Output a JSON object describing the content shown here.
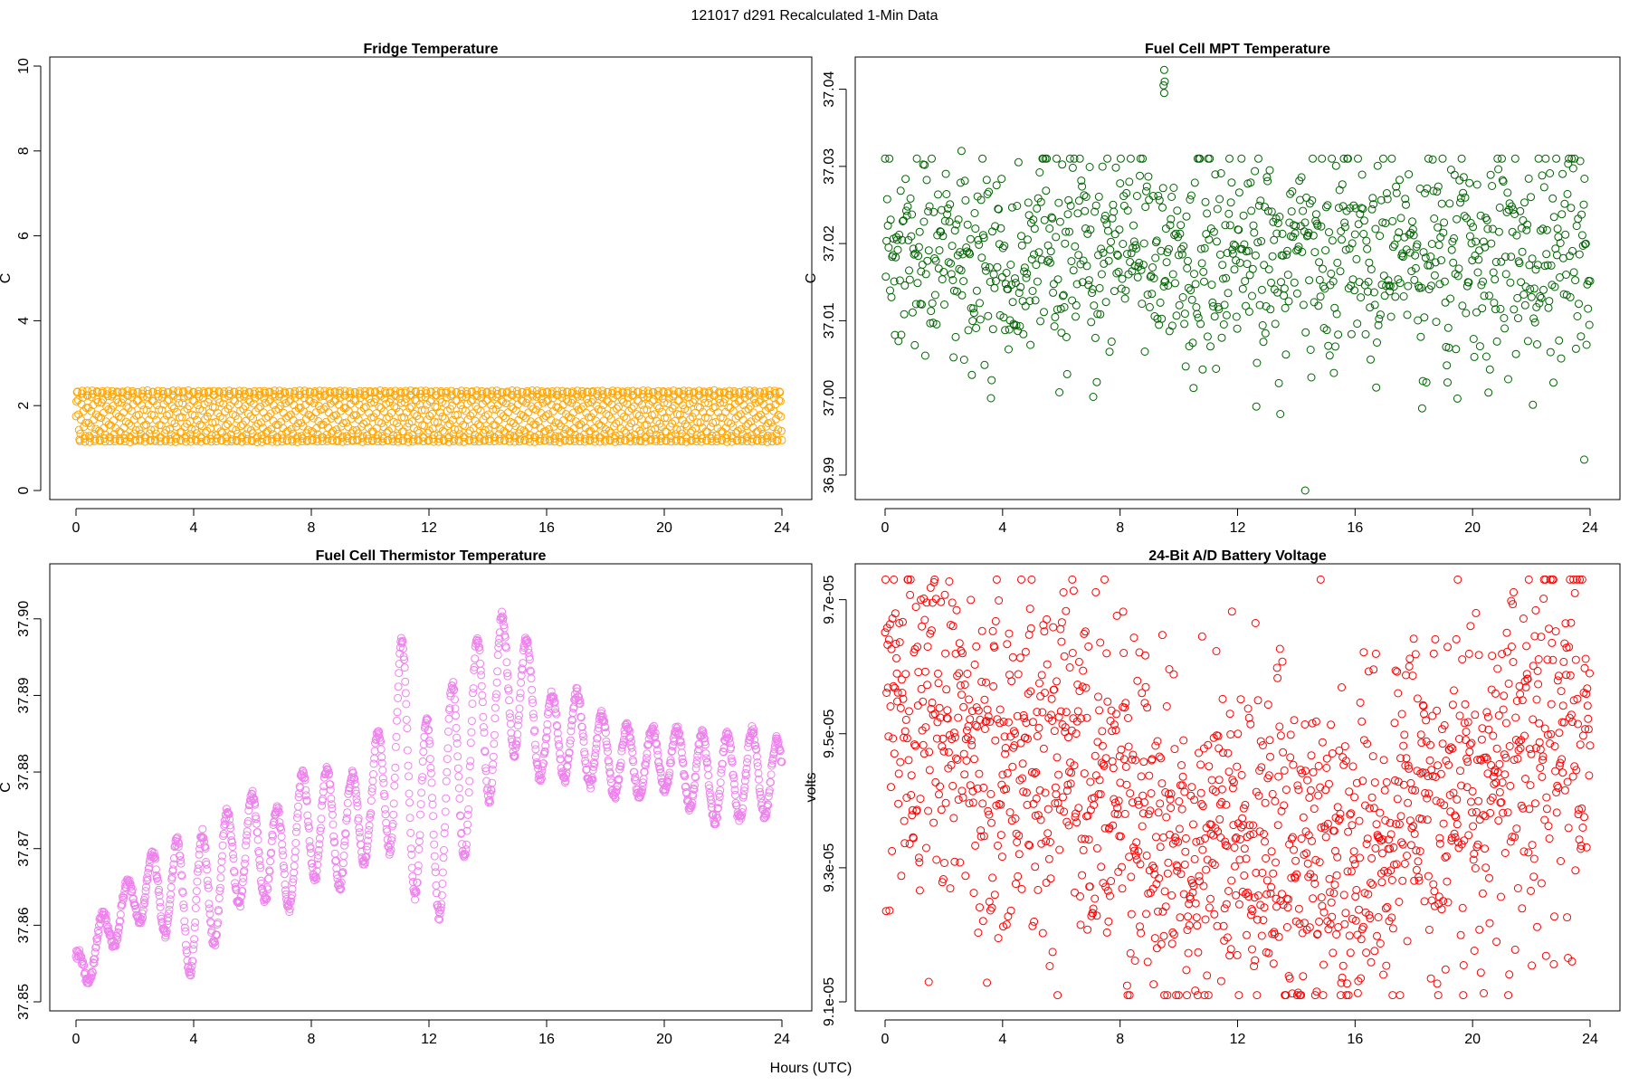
{
  "page": {
    "title": "121017   d291   Recalculated 1-Min Data",
    "xlabel": "Hours (UTC)"
  },
  "chart_data": [
    {
      "id": "fridge",
      "type": "scatter",
      "title": "Fridge Temperature",
      "xlabel": "Hours (UTC)",
      "ylabel": "C",
      "color": "#FFA500",
      "xlim": [
        0,
        24
      ],
      "ylim": [
        0,
        10
      ],
      "xticks": [
        0,
        4,
        8,
        12,
        16,
        20,
        24
      ],
      "yticks": [
        0,
        2,
        4,
        6,
        8,
        10
      ],
      "ytick_labels": [
        "0",
        "2",
        "4",
        "6",
        "8",
        "10"
      ],
      "series": {
        "name": "Fridge Temperature",
        "model": "oscillating band",
        "x_range": [
          0,
          24
        ],
        "y_min": 1.15,
        "y_max": 2.35,
        "n_points": 1440
      }
    },
    {
      "id": "mpt",
      "type": "scatter",
      "title": "Fuel Cell MPT Temperature",
      "xlabel": "Hours (UTC)",
      "ylabel": "C",
      "color": "#006400",
      "xlim": [
        0,
        24
      ],
      "ylim": [
        36.988,
        37.043
      ],
      "xticks": [
        0,
        4,
        8,
        12,
        16,
        20,
        24
      ],
      "yticks": [
        36.99,
        37.0,
        37.01,
        37.02,
        37.03,
        37.04
      ],
      "ytick_labels": [
        "36.99",
        "37.00",
        "37.01",
        "37.02",
        "37.03",
        "37.04"
      ],
      "series": {
        "name": "Fuel Cell MPT Temperature",
        "model": "noise",
        "center": 37.018,
        "spread": 0.007,
        "n_points": 1000
      },
      "outliers": [
        {
          "x": 9.5,
          "y": 37.0425
        },
        {
          "x": 9.52,
          "y": 37.041
        },
        {
          "x": 9.48,
          "y": 37.0405
        },
        {
          "x": 9.5,
          "y": 37.0395
        },
        {
          "x": 2.6,
          "y": 37.032
        },
        {
          "x": 14.3,
          "y": 36.988
        },
        {
          "x": 23.8,
          "y": 36.992
        }
      ]
    },
    {
      "id": "thermistor",
      "type": "scatter",
      "title": "Fuel Cell Thermistor Temperature",
      "xlabel": "Hours (UTC)",
      "ylabel": "C",
      "color": "#EE82EE",
      "xlim": [
        0,
        24
      ],
      "ylim": [
        37.85,
        37.906
      ],
      "xticks": [
        0,
        4,
        8,
        12,
        16,
        20,
        24
      ],
      "yticks": [
        37.85,
        37.86,
        37.87,
        37.88,
        37.89,
        37.9
      ],
      "ytick_labels": [
        "37.85",
        "37.86",
        "37.87",
        "37.88",
        "37.89",
        "37.90"
      ],
      "series": {
        "name": "Fuel Cell Thermistor Temperature",
        "model": "baseline + oscillation",
        "baseline": [
          [
            0,
            37.853
          ],
          [
            1,
            37.859
          ],
          [
            2,
            37.864
          ],
          [
            3,
            37.865
          ],
          [
            4,
            37.862
          ],
          [
            5,
            37.867
          ],
          [
            6,
            37.871
          ],
          [
            7,
            37.868
          ],
          [
            8,
            37.874
          ],
          [
            9,
            37.872
          ],
          [
            10,
            37.875
          ],
          [
            11,
            37.884
          ],
          [
            12,
            37.872
          ],
          [
            13,
            37.88
          ],
          [
            14,
            37.888
          ],
          [
            15,
            37.892
          ],
          [
            16,
            37.884
          ],
          [
            17,
            37.885
          ],
          [
            18,
            37.882
          ],
          [
            19,
            37.881
          ],
          [
            20,
            37.882
          ],
          [
            21,
            37.88
          ],
          [
            22,
            37.879
          ],
          [
            23,
            37.88
          ],
          [
            24,
            37.879
          ]
        ],
        "oscillation": [
          [
            0,
            0.003
          ],
          [
            2,
            0.003
          ],
          [
            4,
            0.009
          ],
          [
            6,
            0.006
          ],
          [
            8,
            0.008
          ],
          [
            10,
            0.006
          ],
          [
            11,
            0.014
          ],
          [
            12,
            0.014
          ],
          [
            14,
            0.012
          ],
          [
            16,
            0.006
          ],
          [
            20,
            0.004
          ],
          [
            22,
            0.006
          ],
          [
            24,
            0.005
          ]
        ],
        "n_points": 1440
      }
    },
    {
      "id": "battery",
      "type": "scatter",
      "title": "24-Bit A/D Battery Voltage",
      "xlabel": "Hours (UTC)",
      "ylabel": "volts",
      "color": "#FF0000",
      "xlim": [
        0,
        24
      ],
      "ylim": [
        9.1e-05,
        9.74e-05
      ],
      "xticks": [
        0,
        4,
        8,
        12,
        16,
        20,
        24
      ],
      "yticks": [
        9.1e-05,
        9.3e-05,
        9.5e-05,
        9.7e-05
      ],
      "ytick_labels": [
        "9.1e-05",
        "9.3e-05",
        "9.5e-05",
        "9.7e-05"
      ],
      "series": {
        "name": "24-Bit A/D Battery Voltage",
        "model": "trend + noise",
        "trend": [
          [
            0,
            9.52e-05
          ],
          [
            6,
            9.45e-05
          ],
          [
            10,
            9.33e-05
          ],
          [
            14,
            9.31e-05
          ],
          [
            17,
            9.36e-05
          ],
          [
            20,
            9.45e-05
          ],
          [
            24,
            9.52e-05
          ]
        ],
        "spread": 1.3e-06,
        "n_points": 1440
      }
    }
  ]
}
